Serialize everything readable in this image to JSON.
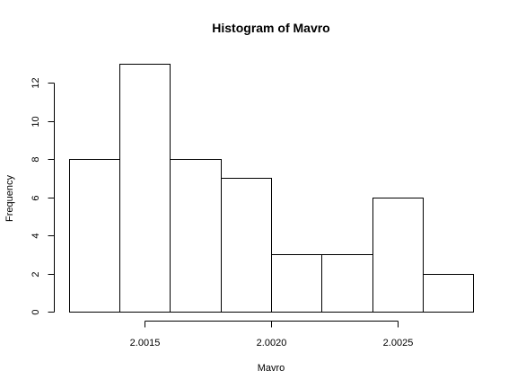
{
  "chart_data": {
    "type": "bar",
    "title": "Histogram of Mavro",
    "xlabel": "Mavro",
    "ylabel": "Frequency",
    "bins": [
      {
        "start": 2.0012,
        "end": 2.0014,
        "count": 8
      },
      {
        "start": 2.0014,
        "end": 2.0016,
        "count": 13
      },
      {
        "start": 2.0016,
        "end": 2.0018,
        "count": 8
      },
      {
        "start": 2.0018,
        "end": 2.002,
        "count": 7
      },
      {
        "start": 2.002,
        "end": 2.0022,
        "count": 3
      },
      {
        "start": 2.0022,
        "end": 2.0024,
        "count": 3
      },
      {
        "start": 2.0024,
        "end": 2.0026,
        "count": 6
      },
      {
        "start": 2.0026,
        "end": 2.0028,
        "count": 2
      }
    ],
    "xlim": [
      2.0012,
      2.0028
    ],
    "ylim": [
      0,
      13
    ],
    "x_axis": {
      "range": [
        2.0015,
        2.0025
      ],
      "ticks": [
        2.0015,
        2.002,
        2.0025
      ],
      "tick_labels": [
        "2.0015",
        "2.0020",
        "2.0025"
      ]
    },
    "y_axis": {
      "range": [
        0,
        12
      ],
      "ticks": [
        0,
        2,
        4,
        6,
        8,
        10,
        12
      ],
      "tick_labels": [
        "0",
        "2",
        "4",
        "6",
        "8",
        "10",
        "12"
      ]
    },
    "grid": false,
    "legend": "none"
  }
}
